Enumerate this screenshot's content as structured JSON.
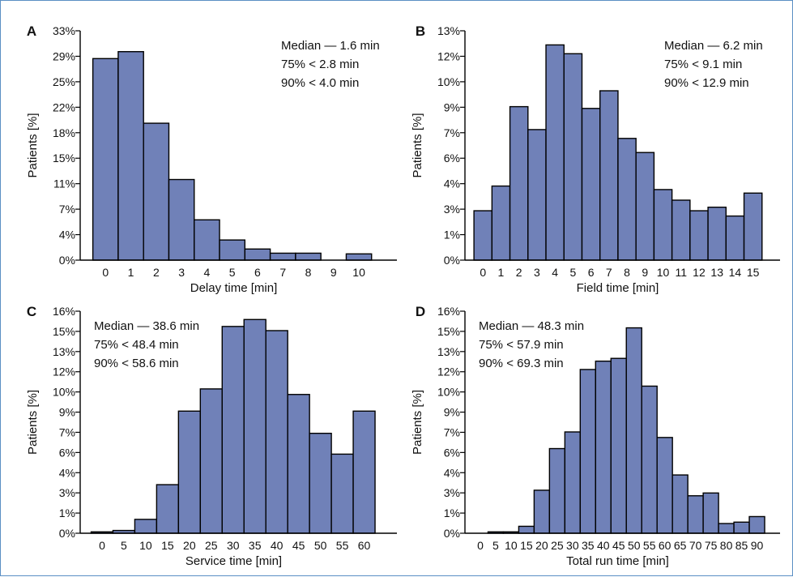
{
  "colors": {
    "bar": "#7081b8",
    "bar_edge": "#000000",
    "frame": "#5b8fc4"
  },
  "chart_data": [
    {
      "type": "bar",
      "panel": "A",
      "xlabel": "Delay time [min]",
      "ylabel": "Patients [%]",
      "ytick_labels": [
        "0%",
        "4%",
        "7%",
        "11%",
        "15%",
        "18%",
        "22%",
        "25%",
        "29%",
        "33%"
      ],
      "ylim": [
        0,
        33
      ],
      "xtick_labels": [
        "0",
        "1",
        "2",
        "3",
        "4",
        "5",
        "6",
        "7",
        "8",
        "9",
        "10"
      ],
      "bin_start": 0,
      "bin_width": 1,
      "axis_max": 11.5,
      "values": [
        29.0,
        30.0,
        19.7,
        11.6,
        5.8,
        2.9,
        1.6,
        1.0,
        1.0,
        0,
        0.9
      ],
      "stats": [
        "Median — 1.6 min",
        "75% < 2.8 min",
        "90% < 4.0 min"
      ],
      "stats_position": "top-right"
    },
    {
      "type": "bar",
      "panel": "B",
      "xlabel": "Field time [min]",
      "ylabel": "Patients [%]",
      "ytick_labels": [
        "0%",
        "1%",
        "3%",
        "4%",
        "6%",
        "7%",
        "9%",
        "10%",
        "12%",
        "13%"
      ],
      "ylim": [
        0,
        13
      ],
      "xtick_labels": [
        "0",
        "1",
        "2",
        "3",
        "4",
        "5",
        "6",
        "7",
        "8",
        "9",
        "10",
        "11",
        "12",
        "13",
        "14",
        "15"
      ],
      "bin_start": 0,
      "bin_width": 1,
      "axis_max": 16.5,
      "values": [
        2.8,
        4.2,
        8.7,
        7.4,
        12.2,
        11.7,
        8.6,
        9.6,
        6.9,
        6.1,
        4.0,
        3.4,
        2.8,
        3.0,
        2.5,
        3.8
      ],
      "stats": [
        "Median — 6.2 min",
        "75% < 9.1 min",
        "90% < 12.9 min"
      ],
      "stats_position": "top-right"
    },
    {
      "type": "bar",
      "panel": "C",
      "xlabel": "Service time [min]",
      "ylabel": "Patients [%]",
      "ytick_labels": [
        "0%",
        "1%",
        "3%",
        "4%",
        "6%",
        "7%",
        "9%",
        "10%",
        "12%",
        "13%",
        "15%",
        "16%"
      ],
      "ylim": [
        0,
        16
      ],
      "xtick_labels": [
        "0",
        "5",
        "10",
        "15",
        "20",
        "25",
        "30",
        "35",
        "40",
        "45",
        "50",
        "55",
        "60"
      ],
      "bin_start": 0,
      "bin_width": 5,
      "axis_max": 67.5,
      "values": [
        0.1,
        0.2,
        1.0,
        3.5,
        8.8,
        10.4,
        14.9,
        15.4,
        14.6,
        10.0,
        7.2,
        5.7,
        8.8
      ],
      "stats": [
        "Median — 38.6 min",
        "75% < 48.4 min",
        "90% < 58.6 min"
      ],
      "stats_position": "top-left"
    },
    {
      "type": "bar",
      "panel": "D",
      "xlabel": "Total run time [min]",
      "ylabel": "Patients [%]",
      "ytick_labels": [
        "0%",
        "1%",
        "3%",
        "4%",
        "6%",
        "7%",
        "9%",
        "10%",
        "12%",
        "13%",
        "15%",
        "16%"
      ],
      "ylim": [
        0,
        16
      ],
      "xtick_labels": [
        "0",
        "5",
        "10",
        "15",
        "20",
        "25",
        "30",
        "35",
        "40",
        "45",
        "50",
        "55",
        "60",
        "65",
        "70",
        "75",
        "80",
        "85",
        "90"
      ],
      "bin_start": 5,
      "bin_width": 5,
      "axis_max": 97.5,
      "values": [
        0.1,
        0.1,
        0.5,
        3.1,
        6.1,
        7.3,
        11.8,
        12.4,
        12.6,
        14.8,
        10.6,
        6.9,
        4.2,
        2.7,
        2.9,
        0.7,
        0.8,
        1.2
      ],
      "stats": [
        "Median — 48.3 min",
        "75% < 57.9 min",
        "90% < 69.3 min"
      ],
      "stats_position": "top-left"
    }
  ]
}
